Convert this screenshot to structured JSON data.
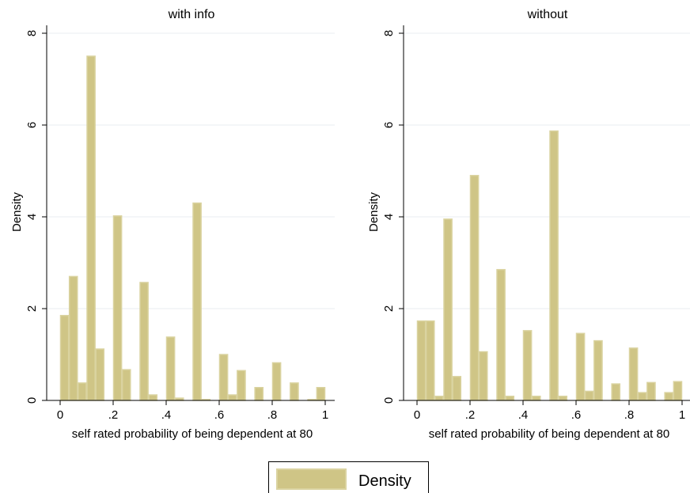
{
  "chart_data": [
    {
      "type": "bar",
      "title": "with info",
      "xlabel": "self rated probability of being dependent at 80",
      "ylabel": "Density",
      "xlim": [
        0,
        1
      ],
      "ylim": [
        0,
        8
      ],
      "xticks": [
        "0",
        ".2",
        ".4",
        ".6",
        ".8",
        "1"
      ],
      "yticks": [
        "0",
        "2",
        "4",
        "6",
        "8"
      ],
      "bin_width": 0.0333,
      "bins": [
        {
          "x": 0.0,
          "y": 1.85
        },
        {
          "x": 0.0333,
          "y": 2.7
        },
        {
          "x": 0.0667,
          "y": 0.38
        },
        {
          "x": 0.1,
          "y": 7.5
        },
        {
          "x": 0.1333,
          "y": 1.12
        },
        {
          "x": 0.2,
          "y": 4.02
        },
        {
          "x": 0.2333,
          "y": 0.67
        },
        {
          "x": 0.3,
          "y": 2.57
        },
        {
          "x": 0.3333,
          "y": 0.12
        },
        {
          "x": 0.4,
          "y": 1.38
        },
        {
          "x": 0.4333,
          "y": 0.05
        },
        {
          "x": 0.5,
          "y": 4.3
        },
        {
          "x": 0.5333,
          "y": 0.02
        },
        {
          "x": 0.6,
          "y": 1.0
        },
        {
          "x": 0.6333,
          "y": 0.12
        },
        {
          "x": 0.6667,
          "y": 0.65
        },
        {
          "x": 0.7333,
          "y": 0.28
        },
        {
          "x": 0.8,
          "y": 0.82
        },
        {
          "x": 0.8667,
          "y": 0.38
        },
        {
          "x": 0.9333,
          "y": 0.02
        },
        {
          "x": 0.9667,
          "y": 0.28
        }
      ],
      "grid": true
    },
    {
      "type": "bar",
      "title": "without",
      "xlabel": "self rated probability of being dependent at 80",
      "ylabel": "Density",
      "xlim": [
        0,
        1
      ],
      "ylim": [
        0,
        8
      ],
      "xticks": [
        "0",
        ".2",
        ".4",
        ".6",
        ".8",
        "1"
      ],
      "yticks": [
        "0",
        "2",
        "4",
        "6",
        "8"
      ],
      "bin_width": 0.0333,
      "bins": [
        {
          "x": 0.0,
          "y": 1.73
        },
        {
          "x": 0.0333,
          "y": 1.73
        },
        {
          "x": 0.0667,
          "y": 0.09
        },
        {
          "x": 0.1,
          "y": 3.95
        },
        {
          "x": 0.1333,
          "y": 0.52
        },
        {
          "x": 0.2,
          "y": 4.9
        },
        {
          "x": 0.2333,
          "y": 1.06
        },
        {
          "x": 0.3,
          "y": 2.85
        },
        {
          "x": 0.3333,
          "y": 0.09
        },
        {
          "x": 0.4,
          "y": 1.52
        },
        {
          "x": 0.4333,
          "y": 0.09
        },
        {
          "x": 0.5,
          "y": 5.87
        },
        {
          "x": 0.5333,
          "y": 0.09
        },
        {
          "x": 0.6,
          "y": 1.46
        },
        {
          "x": 0.6333,
          "y": 0.2
        },
        {
          "x": 0.6667,
          "y": 1.3
        },
        {
          "x": 0.7333,
          "y": 0.36
        },
        {
          "x": 0.8,
          "y": 1.14
        },
        {
          "x": 0.8333,
          "y": 0.17
        },
        {
          "x": 0.8667,
          "y": 0.39
        },
        {
          "x": 0.9333,
          "y": 0.17
        },
        {
          "x": 0.9667,
          "y": 0.41
        }
      ],
      "grid": true
    }
  ],
  "legend": {
    "label": "Density",
    "placement": "bottom-center"
  },
  "colors": {
    "bar_fill": "#CFC586",
    "bar_edge": "#DAD3A0",
    "gridline": "#E8EEF2",
    "axis": "#000000"
  }
}
